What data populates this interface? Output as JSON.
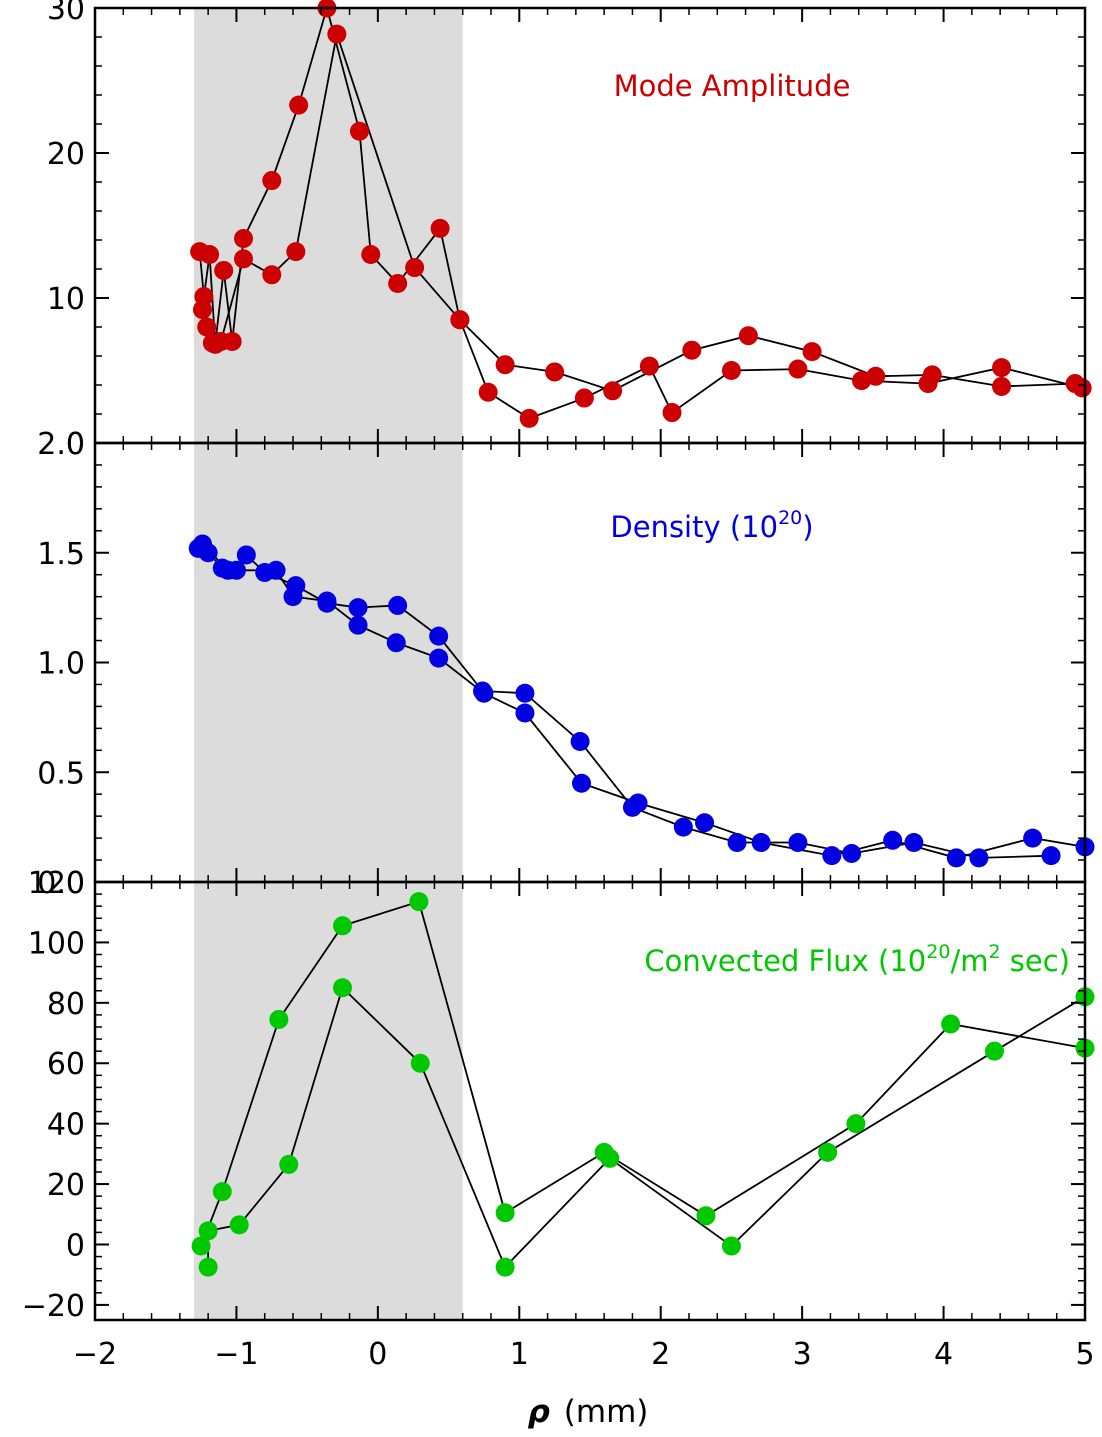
{
  "x_axis": {
    "label_symbol": "ρ",
    "label_unit": "(mm)",
    "ticks": [
      "−2",
      "−1",
      "0",
      "1",
      "2",
      "3",
      "4",
      "5"
    ],
    "tick_values": [
      -2,
      -1,
      0,
      1,
      2,
      3,
      4,
      5
    ],
    "range": [
      -2,
      5
    ]
  },
  "shaded_region": {
    "x_range": [
      -1.3,
      0.6
    ],
    "color": "#dcdcdc"
  },
  "colors": {
    "mode": "#cc0000",
    "density": "#0000e0",
    "flux": "#00c800",
    "line": "#000000"
  },
  "chart_data": [
    {
      "type": "line",
      "name": "Mode Amplitude",
      "annotation": "Mode Amplitude",
      "ylim": [
        0,
        30
      ],
      "y_ticks": [
        "0",
        "10",
        "20",
        "30"
      ],
      "y_tick_values": [
        0,
        10,
        20,
        30
      ],
      "series": [
        {
          "x": [
            -1.26,
            -1.23,
            -1.19,
            -1.15,
            -1.09,
            -1.03,
            -0.95,
            -0.75,
            -0.56,
            -0.36,
            -0.13,
            -0.05,
            0.14,
            0.44,
            0.58,
            0.78,
            1.07,
            1.46,
            1.92,
            2.08,
            2.5,
            2.97,
            3.42,
            3.89,
            4.41,
            4.98
          ],
          "y": [
            13.2,
            10.1,
            13.0,
            6.8,
            11.9,
            7.0,
            14.1,
            18.1,
            23.3,
            30.0,
            21.5,
            13.0,
            11.0,
            14.8,
            8.5,
            3.5,
            1.7,
            3.1,
            5.3,
            2.1,
            5.0,
            5.1,
            4.3,
            4.1,
            5.2,
            3.8
          ]
        },
        {
          "x": [
            -1.24,
            -1.21,
            -1.17,
            -1.11,
            -0.95,
            -0.75,
            -0.58,
            -0.29,
            0.26,
            0.58,
            0.9,
            1.25,
            1.66,
            2.22,
            2.62,
            3.07,
            3.52,
            3.92,
            4.41,
            4.93
          ],
          "y": [
            9.2,
            8.0,
            6.9,
            7.0,
            12.7,
            11.6,
            13.2,
            28.2,
            12.1,
            8.5,
            5.4,
            4.9,
            3.6,
            6.4,
            7.4,
            6.3,
            4.6,
            4.7,
            3.9,
            4.1
          ]
        }
      ]
    },
    {
      "type": "line",
      "name": "Density",
      "annotation_main": "Density (10",
      "annotation_sup": "20",
      "annotation_end": ")",
      "ylim": [
        0.0,
        2.0
      ],
      "y_ticks": [
        "0.0",
        "0.5",
        "1.0",
        "1.5",
        "2.0"
      ],
      "y_tick_values": [
        0.0,
        0.5,
        1.0,
        1.5,
        2.0
      ],
      "series": [
        {
          "x": [
            -1.27,
            -1.2,
            -1.1,
            -1.0,
            -0.93,
            -0.8,
            -0.58,
            -0.36,
            -0.14,
            0.14,
            0.43,
            0.74,
            1.04,
            1.43,
            1.8,
            2.16,
            2.54,
            2.97,
            3.35,
            3.79,
            4.25,
            4.76
          ],
          "y": [
            1.52,
            1.5,
            1.43,
            1.42,
            1.49,
            1.41,
            1.35,
            1.27,
            1.25,
            1.26,
            1.12,
            0.87,
            0.86,
            0.64,
            0.34,
            0.25,
            0.18,
            0.18,
            0.13,
            0.18,
            0.11,
            0.12
          ]
        },
        {
          "x": [
            -1.24,
            -1.06,
            -0.72,
            -0.6,
            -0.36,
            -0.14,
            0.13,
            0.43,
            0.75,
            1.04,
            1.44,
            1.84,
            2.31,
            2.71,
            3.21,
            3.64,
            4.09,
            4.63,
            5.0
          ],
          "y": [
            1.54,
            1.42,
            1.42,
            1.3,
            1.28,
            1.17,
            1.09,
            1.02,
            0.86,
            0.77,
            0.45,
            0.36,
            0.27,
            0.18,
            0.12,
            0.19,
            0.11,
            0.2,
            0.16
          ]
        }
      ]
    },
    {
      "type": "line",
      "name": "Convected Flux",
      "annotation_pre": "Convected Flux (10",
      "annotation_sup1": "20",
      "annotation_mid": "/m",
      "annotation_sup2": "2",
      "annotation_end": " sec)",
      "ylim": [
        -25,
        120
      ],
      "y_ticks": [
        "−20",
        "0",
        "20",
        "40",
        "60",
        "80",
        "100",
        "120"
      ],
      "y_tick_values": [
        -20,
        0,
        20,
        40,
        60,
        80,
        100,
        120
      ],
      "series": [
        {
          "x": [
            -1.25,
            -1.1,
            -0.7,
            -0.25,
            0.29,
            0.9,
            1.6,
            2.32,
            3.38,
            4.05,
            5.0
          ],
          "y": [
            -0.5,
            17.5,
            74.5,
            105.5,
            113.5,
            10.5,
            30.5,
            9.5,
            40.0,
            73.0,
            65.0
          ]
        },
        {
          "x": [
            -1.2,
            -1.2,
            -0.98,
            -0.63,
            -0.25,
            0.3,
            0.9,
            1.64,
            2.5,
            3.18,
            4.36,
            5.0
          ],
          "y": [
            -7.5,
            4.5,
            6.5,
            26.5,
            85.0,
            60.0,
            -7.5,
            28.5,
            -0.5,
            30.5,
            64.0,
            82.0
          ]
        }
      ]
    }
  ]
}
